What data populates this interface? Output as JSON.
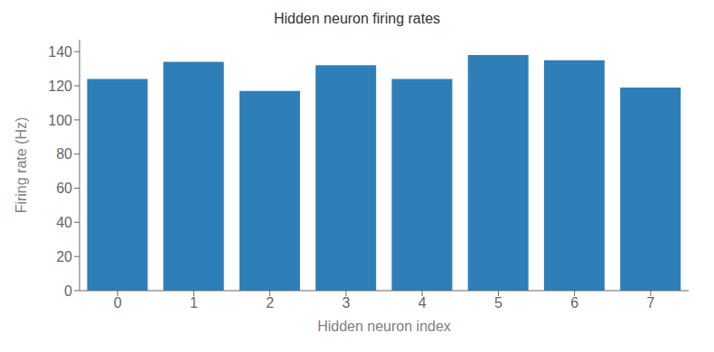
{
  "chart_data": {
    "type": "bar",
    "title": "Hidden neuron firing rates",
    "xlabel": "Hidden neuron index",
    "ylabel": "Firing rate (Hz)",
    "categories": [
      0,
      1,
      2,
      3,
      4,
      5,
      6,
      7
    ],
    "values": [
      124,
      134,
      117,
      132,
      124,
      138,
      135,
      119
    ],
    "color": "#2e7fb8",
    "ylim": [
      0,
      147
    ],
    "yticks": [
      0,
      20,
      40,
      60,
      80,
      100,
      120,
      140
    ],
    "grid": false
  }
}
